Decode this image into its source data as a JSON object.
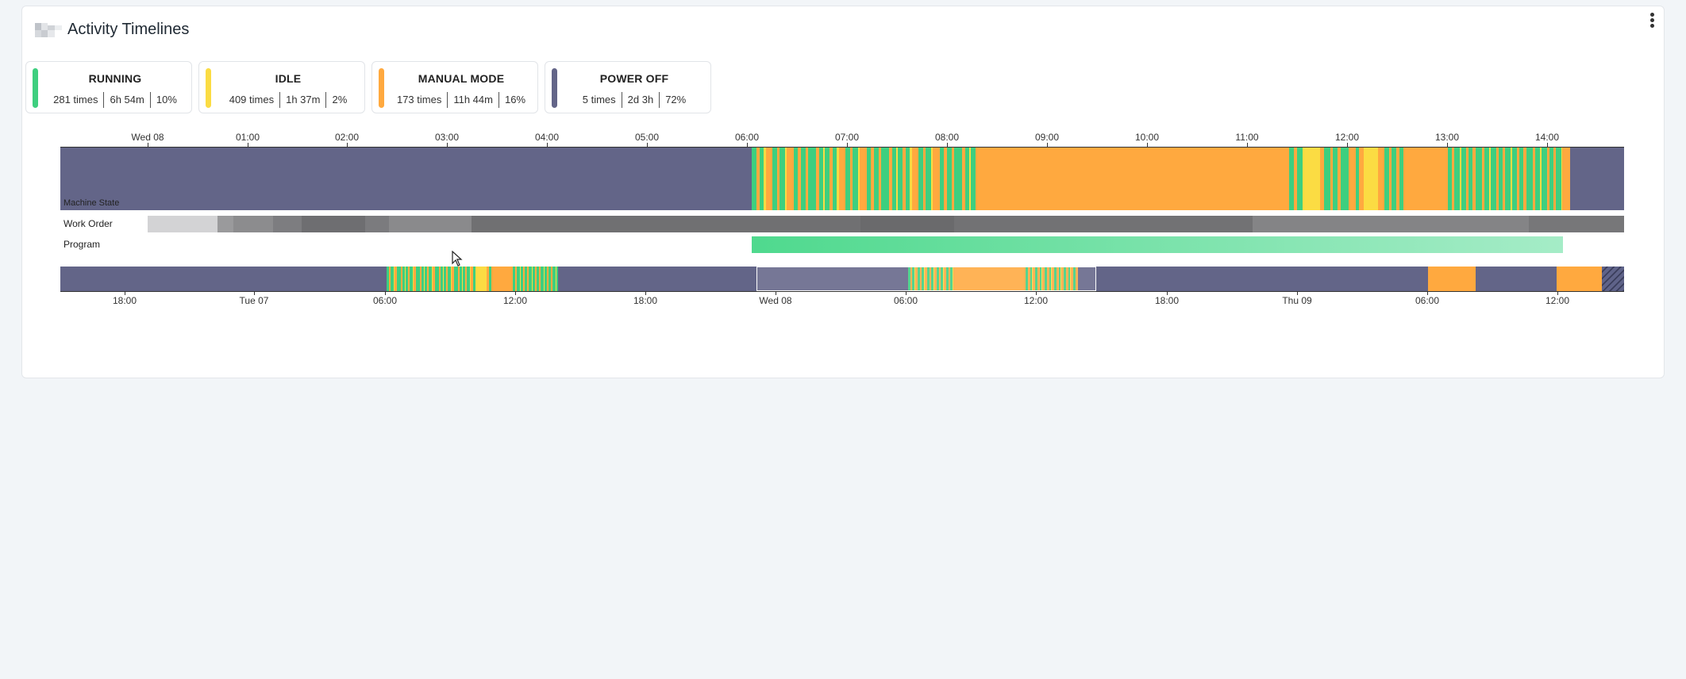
{
  "header": {
    "title": "Activity Timelines"
  },
  "colors": {
    "running": "#3ecf7f",
    "idle": "#fbdc43",
    "manual": "#ffa93f",
    "off": "#636588"
  },
  "legend": [
    {
      "key": "running",
      "name": "RUNNING",
      "times": "281 times",
      "duration": "6h 54m",
      "percent": "10%",
      "color": "#3ecf7f"
    },
    {
      "key": "idle",
      "name": "IDLE",
      "times": "409 times",
      "duration": "1h 37m",
      "percent": "2%",
      "color": "#fbdc43"
    },
    {
      "key": "manual",
      "name": "MANUAL MODE",
      "times": "173 times",
      "duration": "11h 44m",
      "percent": "16%",
      "color": "#ffa93f"
    },
    {
      "key": "off",
      "name": "POWER OFF",
      "times": "5 times",
      "duration": "2d 3h",
      "percent": "72%",
      "color": "#636588"
    }
  ],
  "rows": {
    "machine_state": "Machine State",
    "work_order": "Work Order",
    "program": "Program"
  },
  "top_axis": {
    "ticks": [
      "Wed 08",
      "01:00",
      "02:00",
      "03:00",
      "04:00",
      "05:00",
      "06:00",
      "07:00",
      "08:00",
      "09:00",
      "10:00",
      "11:00",
      "12:00",
      "13:00",
      "14:00"
    ]
  },
  "bottom_axis": {
    "ticks": [
      "18:00",
      "Tue 07",
      "06:00",
      "12:00",
      "18:00",
      "Wed 08",
      "06:00",
      "12:00",
      "18:00",
      "Thu 09",
      "06:00",
      "12:00"
    ]
  }
}
